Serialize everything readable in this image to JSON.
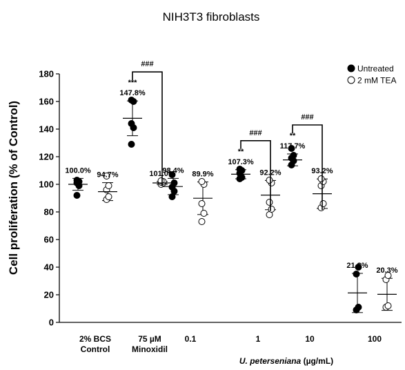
{
  "chart_data": {
    "type": "scatter",
    "title": "NIH3T3 fibroblasts",
    "ylabel": "Cell proliferation (% of Control)",
    "ylim": [
      0,
      180
    ],
    "yticks": [
      0,
      20,
      40,
      60,
      80,
      100,
      120,
      140,
      160,
      180
    ],
    "x_unit_label_italic": "U. peterseniana",
    "x_unit_label_rest": " (µg/mL)",
    "categories": [
      {
        "lines": [
          "2% BCS",
          "Control"
        ]
      },
      {
        "lines": [
          "75 µM",
          "Minoxidil"
        ]
      },
      {
        "lines": [
          "0.1"
        ]
      },
      {
        "lines": [
          "1"
        ]
      },
      {
        "lines": [
          "10"
        ]
      },
      {
        "lines": [
          "100"
        ]
      }
    ],
    "legend": {
      "placement": "top-right",
      "items": [
        {
          "label": "Untreated",
          "marker": "filled"
        },
        {
          "label": "2 mM TEA",
          "marker": "open"
        }
      ]
    },
    "series": [
      {
        "name": "Untreated",
        "marker": "filled",
        "groups": [
          {
            "category": 0,
            "mean": 100.0,
            "sd": 4.3,
            "points": [
              92,
              99,
              101,
              102,
              103
            ],
            "label": "100.0%",
            "sig": ""
          },
          {
            "category": 1,
            "mean": 147.8,
            "sd": 12.6,
            "points": [
              129,
              141,
              144,
              160,
              161
            ],
            "label": "147.8%",
            "sig": "***"
          },
          {
            "category": 2,
            "mean": 98.4,
            "sd": 5.9,
            "points": [
              91,
              95,
              98,
              101,
              107
            ],
            "label": "98.4%",
            "sig": ""
          },
          {
            "category": 3,
            "mean": 107.3,
            "sd": 3.3,
            "points": [
              104,
              105,
              108,
              110,
              111
            ],
            "label": "107.3%",
            "sig": "**"
          },
          {
            "category": 4,
            "mean": 117.7,
            "sd": 4.3,
            "points": [
              114,
              117,
              119,
              121,
              126
            ],
            "label": "117.7%",
            "sig": "**"
          },
          {
            "category": 5,
            "mean": 21.3,
            "sd": 14.2,
            "points": [
              9,
              11,
              35,
              40
            ],
            "label": "21.3%",
            "sig": ""
          }
        ]
      },
      {
        "name": "2 mM TEA",
        "marker": "open",
        "groups": [
          {
            "category": 0,
            "mean": 94.7,
            "sd": 6.5,
            "points": [
              89,
              91,
              96,
              99,
              106
            ],
            "label": "94.7%",
            "sig": ""
          },
          {
            "category": 1,
            "mean": 101.0,
            "sd": 1.0,
            "points": [
              100,
              101,
              101.5,
              102,
              102.5
            ],
            "label": "101.0%",
            "sig": ""
          },
          {
            "category": 2,
            "mean": 89.9,
            "sd": 11.8,
            "points": [
              73,
              79,
              86,
              100,
              102
            ],
            "label": "89.9%",
            "sig": ""
          },
          {
            "category": 3,
            "mean": 92.2,
            "sd": 10.6,
            "points": [
              78,
              82,
              87,
              101,
              103
            ],
            "label": "92.2%",
            "sig": ""
          },
          {
            "category": 4,
            "mean": 93.2,
            "sd": 10.7,
            "points": [
              83,
              86,
              99,
              102,
              104
            ],
            "label": "93.2%",
            "sig": ""
          },
          {
            "category": 5,
            "mean": 20.3,
            "sd": 11.6,
            "points": [
              11,
              12,
              31,
              34
            ],
            "label": "20.3%",
            "sig": ""
          }
        ]
      }
    ],
    "comparisons": [
      {
        "category": 1,
        "label": "###"
      },
      {
        "category": 3,
        "label": "###"
      },
      {
        "category": 4,
        "label": "###"
      }
    ]
  }
}
